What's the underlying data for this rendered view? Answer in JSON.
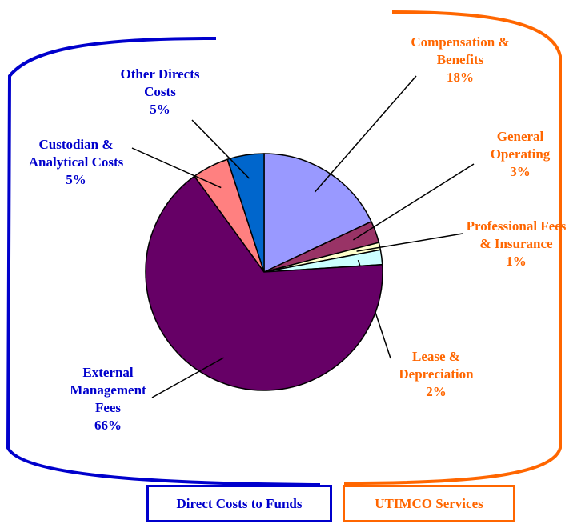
{
  "chart_data": {
    "type": "pie",
    "categories": [
      "Compensation & Benefits",
      "General Operating",
      "Professional Fees & Insurance",
      "Lease & Depreciation",
      "External Management Fees",
      "Custodian & Analytical Costs",
      "Other Directs Costs"
    ],
    "values": [
      18,
      3,
      1,
      2,
      66,
      5,
      5
    ],
    "value_labels": [
      "18%",
      "3%",
      "1%",
      "2%",
      "66%",
      "5%",
      "5%"
    ],
    "colors": [
      "#9999ff",
      "#993366",
      "#ffffcc",
      "#ccffff",
      "#660066",
      "#ff8080",
      "#0066cc"
    ],
    "label_colors": [
      "#ff6600",
      "#ff6600",
      "#ff6600",
      "#ff6600",
      "#0000cc",
      "#0000cc",
      "#0000cc"
    ],
    "groups": [
      {
        "label": "Direct Costs to Funds",
        "color": "#0000cc"
      },
      {
        "label": "UTIMCO Services",
        "color": "#ff6600"
      }
    ]
  }
}
